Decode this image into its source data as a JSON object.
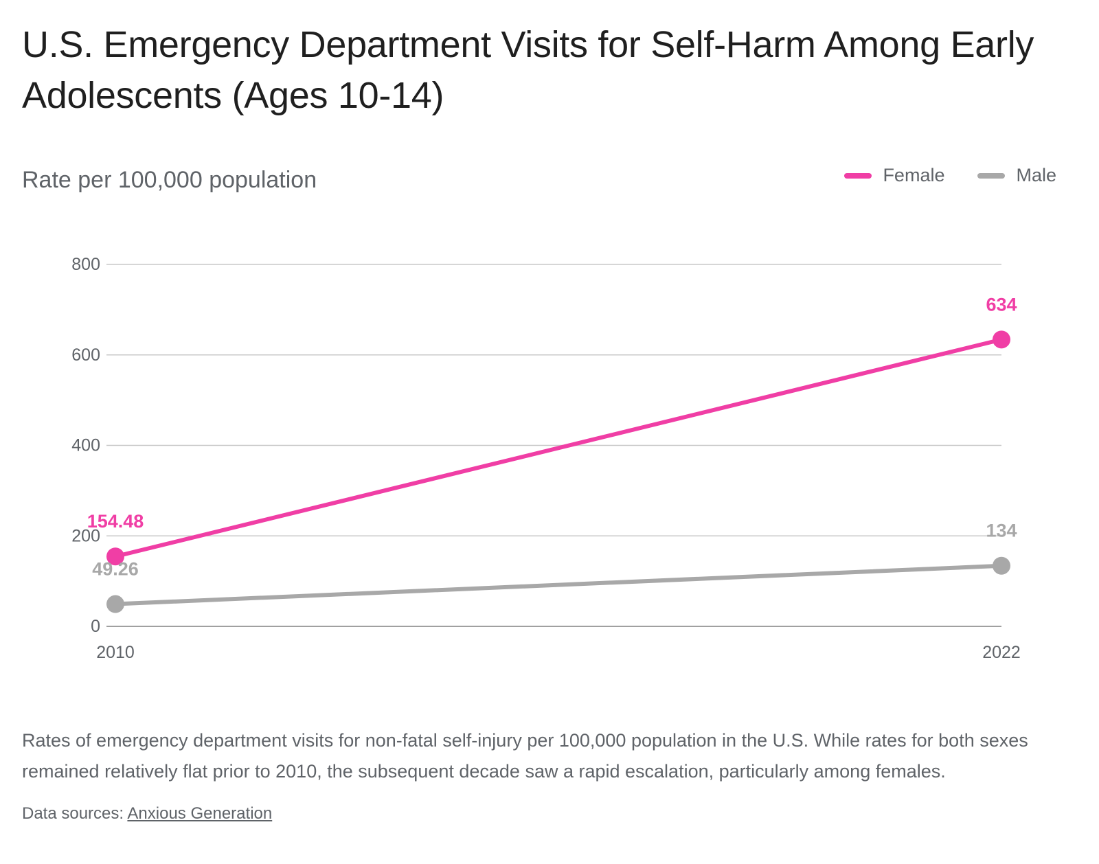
{
  "title": "U.S. Emergency Department Visits for Self-Harm Among Early Adolescents (Ages 10-14)",
  "subtitle": "Rate per 100,000 population",
  "legend": [
    {
      "label": "Female",
      "color": "#f03ea5"
    },
    {
      "label": "Male",
      "color": "#a8a8a8"
    }
  ],
  "description": "Rates of emergency department visits for non-fatal self-injury per 100,000 population in the U.S. While rates for both sexes remained relatively flat prior to 2010, the subsequent decade saw a rapid escalation, particularly among females.",
  "source": {
    "prefix": "Data sources: ",
    "link_text": "Anxious Generation"
  },
  "chart_data": {
    "type": "line",
    "title": "U.S. Emergency Department Visits for Self-Harm Among Early Adolescents (Ages 10-14)",
    "ylabel": "Rate per 100,000 population",
    "xlabel": "",
    "x": [
      "2010",
      "2022"
    ],
    "ylim": [
      0,
      800
    ],
    "yticks": [
      0,
      200,
      400,
      600,
      800
    ],
    "grid": true,
    "legend_position": "top-right",
    "series": [
      {
        "name": "Female",
        "color": "#f03ea5",
        "values": [
          154.48,
          634
        ],
        "labels": [
          "154.48",
          "634"
        ]
      },
      {
        "name": "Male",
        "color": "#a8a8a8",
        "values": [
          49.26,
          134
        ],
        "labels": [
          "49.26",
          "134"
        ]
      }
    ]
  }
}
